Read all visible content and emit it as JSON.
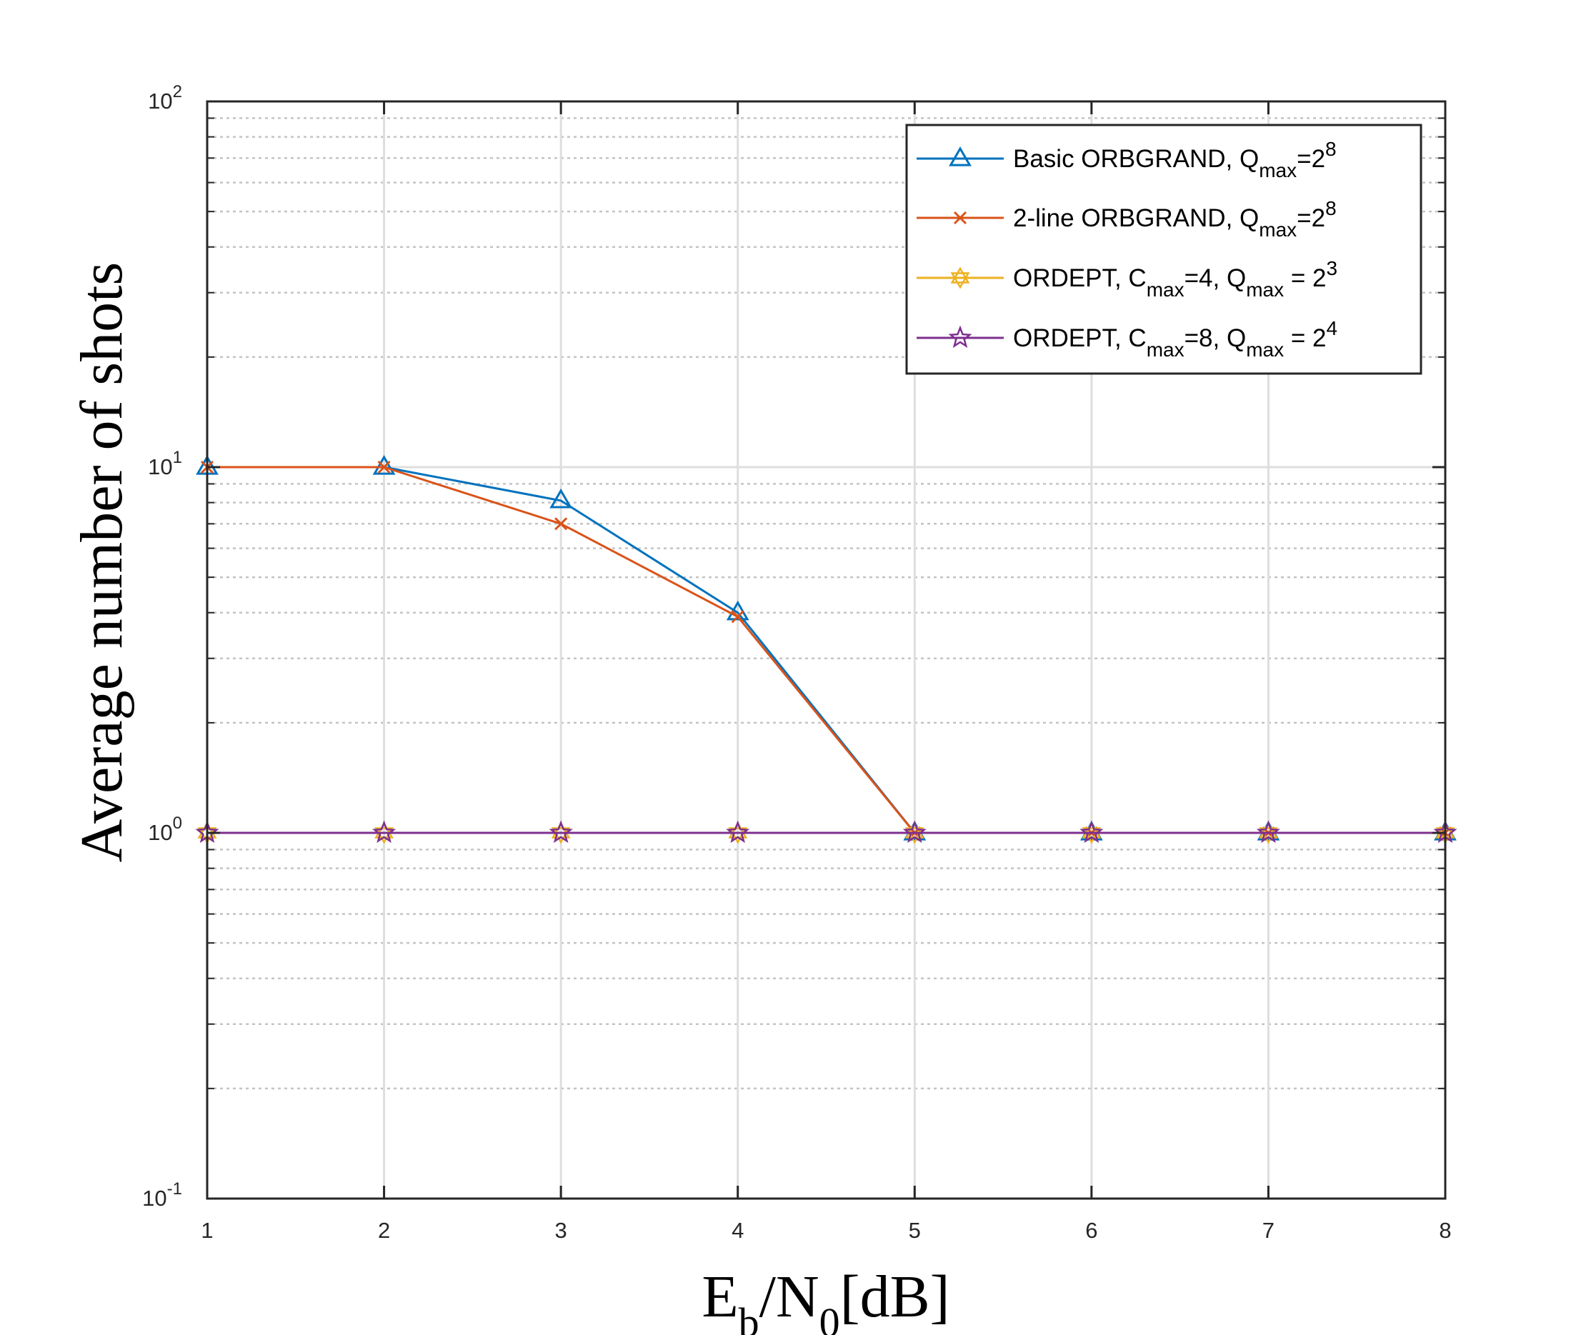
{
  "chart_data": {
    "type": "line",
    "title": "",
    "xlabel": {
      "base": "E",
      "base_sub": "b",
      "sep": "/N",
      "sep_sub": "0",
      "tail": "[dB]"
    },
    "ylabel": "Average number of shots",
    "x": [
      1,
      2,
      3,
      4,
      5,
      6,
      7,
      8
    ],
    "xlim": [
      1,
      8
    ],
    "ylim": [
      0.1,
      100
    ],
    "yscale": "log",
    "xticks": [
      "1",
      "2",
      "3",
      "4",
      "5",
      "6",
      "7",
      "8"
    ],
    "yticks": [
      {
        "base": "10",
        "exp": "-1",
        "value": 0.1
      },
      {
        "base": "10",
        "exp": "0",
        "value": 1
      },
      {
        "base": "10",
        "exp": "1",
        "value": 10
      },
      {
        "base": "10",
        "exp": "2",
        "value": 100
      }
    ],
    "grid": true,
    "minor_grid": true,
    "legend_position": "top-right",
    "series": [
      {
        "name": "Basic ORBGRAND, Q_max=2^8",
        "legend": [
          {
            "t": "Basic ORBGRAND, Q"
          },
          {
            "t": "max",
            "s": "sub"
          },
          {
            "t": "=2"
          },
          {
            "t": "8",
            "s": "sup"
          }
        ],
        "color": "#0072BD",
        "marker": "triangle",
        "values": [
          10,
          10,
          8.1,
          4.0,
          1,
          1,
          1,
          1
        ]
      },
      {
        "name": "2-line ORBGRAND, Q_max=2^8",
        "legend": [
          {
            "t": "2-line ORBGRAND, Q"
          },
          {
            "t": "max",
            "s": "sub"
          },
          {
            "t": "=2"
          },
          {
            "t": "8",
            "s": "sup"
          }
        ],
        "color": "#D95319",
        "marker": "x",
        "values": [
          10,
          10,
          7.0,
          3.9,
          1,
          1,
          1,
          1
        ]
      },
      {
        "name": "ORDEPT, C_max=4, Q_max = 2^3",
        "legend": [
          {
            "t": "ORDEPT, C"
          },
          {
            "t": "max",
            "s": "sub"
          },
          {
            "t": "=4, Q"
          },
          {
            "t": "max",
            "s": "sub"
          },
          {
            "t": " = 2"
          },
          {
            "t": "3",
            "s": "sup"
          }
        ],
        "color": "#EDB120",
        "marker": "hexagram",
        "values": [
          1,
          1,
          1,
          1,
          1,
          1,
          1,
          1
        ]
      },
      {
        "name": "ORDEPT, C_max=8, Q_max = 2^4",
        "legend": [
          {
            "t": "ORDEPT, C"
          },
          {
            "t": "max",
            "s": "sub"
          },
          {
            "t": "=8, Q"
          },
          {
            "t": "max",
            "s": "sub"
          },
          {
            "t": " = 2"
          },
          {
            "t": "4",
            "s": "sup"
          }
        ],
        "color": "#7E2F8E",
        "marker": "pentagram",
        "values": [
          1,
          1,
          1,
          1,
          1,
          1,
          1,
          1
        ]
      }
    ]
  }
}
